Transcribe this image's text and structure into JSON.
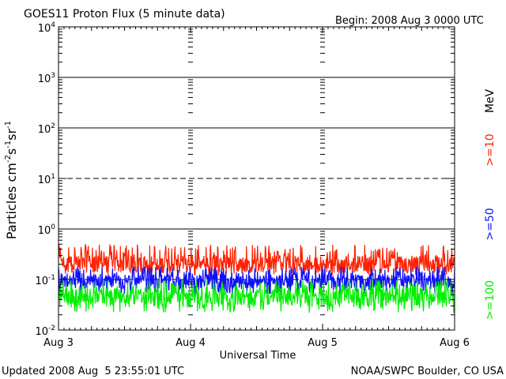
{
  "chart_data": {
    "type": "line",
    "title": "GOES11 Proton Flux (5 minute data)",
    "begin_label": "Begin: 2008 Aug 3 0000 UTC",
    "xlabel": "Universal Time",
    "ylabel_parts": [
      "Particles cm",
      "-2",
      "s",
      "-1",
      "sr",
      "-1"
    ],
    "y_scale": "log",
    "ylim": [
      0.01,
      10000
    ],
    "y_tick_labels": [
      {
        "base": "10",
        "exp": "4"
      },
      {
        "base": "10",
        "exp": "3"
      },
      {
        "base": "10",
        "exp": "2"
      },
      {
        "base": "10",
        "exp": "1"
      },
      {
        "base": "10",
        "exp": "0"
      },
      {
        "base": "10",
        "exp": "-1"
      },
      {
        "base": "10",
        "exp": "-2"
      }
    ],
    "y_tick_values": [
      10000,
      1000,
      100,
      10,
      1,
      0.1,
      0.01
    ],
    "x_tick_labels": [
      "Aug 3",
      "Aug 4",
      "Aug 5",
      "Aug 6"
    ],
    "x_range_days": [
      0,
      3
    ],
    "threshold_lines": [
      {
        "value": 1000,
        "style": "solid"
      },
      {
        "value": 100,
        "style": "solid"
      },
      {
        "value": 10,
        "style": "dashed"
      },
      {
        "value": 1,
        "style": "solid"
      },
      {
        "value": 0.1,
        "style": "dashed"
      }
    ],
    "energy_unit_label": "MeV",
    "series": [
      {
        "name": ">=10",
        "color": "#ff2000",
        "typical_value": 0.2,
        "approx_range": [
          0.12,
          0.5
        ]
      },
      {
        "name": ">=50",
        "color": "#1010ff",
        "typical_value": 0.09,
        "approx_range": [
          0.05,
          0.18
        ]
      },
      {
        "name": ">=100",
        "color": "#00ee00",
        "typical_value": 0.045,
        "approx_range": [
          0.022,
          0.1
        ]
      }
    ]
  },
  "footer": {
    "updated": "Updated 2008 Aug  5 23:55:01 UTC",
    "credit": "NOAA/SWPC Boulder, CO USA"
  }
}
